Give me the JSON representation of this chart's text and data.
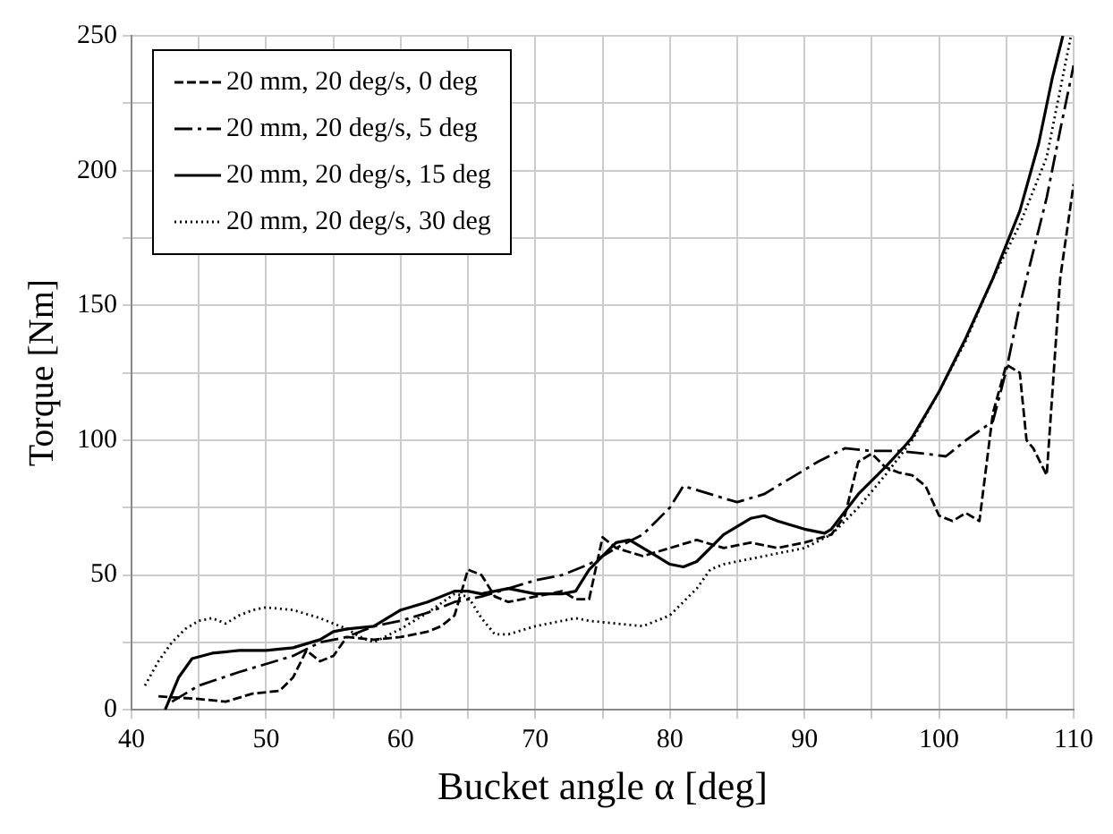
{
  "chart_data": {
    "type": "line",
    "xlabel": "Bucket angle α [deg]",
    "ylabel": "Torque [Nm]",
    "xlim": [
      40,
      110
    ],
    "ylim": [
      0,
      250
    ],
    "xticks": [
      40,
      {
        "value": 45,
        "label": null
      },
      50,
      {
        "value": 55,
        "label": null
      },
      60,
      {
        "value": 65,
        "label": null
      },
      70,
      {
        "value": 75,
        "label": null
      },
      80,
      {
        "value": 85,
        "label": null
      },
      90,
      {
        "value": 95,
        "label": null
      },
      100,
      {
        "value": 105,
        "label": null
      },
      110
    ],
    "yticks": [
      0,
      {
        "value": 25,
        "label": null
      },
      50,
      {
        "value": 75,
        "label": null
      },
      100,
      {
        "value": 125,
        "label": null
      },
      150,
      {
        "value": 175,
        "label": null
      },
      200,
      {
        "value": 225,
        "label": null
      },
      250
    ],
    "grid": true,
    "legend": "top left",
    "marker": "none",
    "series": [
      {
        "name": "20 mm, 20 deg/s, 0 deg",
        "color": "#000000",
        "line_style": "dashed",
        "x": [
          42,
          45,
          47,
          49,
          51,
          52,
          53,
          54,
          55,
          56,
          58,
          60,
          62,
          63,
          64,
          65,
          66,
          67,
          68,
          70,
          72,
          73,
          74,
          75,
          76,
          78,
          80,
          82,
          84,
          86,
          88,
          90,
          92,
          93,
          94,
          95,
          96,
          97,
          98,
          99,
          100,
          101,
          102,
          103,
          104,
          105,
          106,
          106.5,
          107,
          108,
          109,
          110
        ],
        "values": [
          5,
          4,
          3,
          6,
          7,
          12,
          22,
          18,
          20,
          27,
          26,
          27,
          29,
          31,
          35,
          52,
          50,
          42,
          40,
          42,
          44,
          41,
          41,
          64,
          60,
          57,
          60,
          63,
          60,
          62,
          60,
          62,
          65,
          72,
          92,
          95,
          90,
          88,
          87,
          83,
          72,
          70,
          73,
          70,
          110,
          128,
          125,
          100,
          97,
          87,
          160,
          195
        ]
      },
      {
        "name": "20 mm, 20 deg/s, 5 deg",
        "color": "#000000",
        "line_style": "dashdot",
        "x": [
          43,
          45,
          48,
          50,
          52,
          54,
          56,
          58,
          60,
          62,
          64,
          66,
          68,
          70,
          72,
          74,
          76,
          78,
          80,
          81,
          83,
          85,
          87,
          89,
          91,
          93,
          95,
          97,
          99,
          100.5,
          102,
          104,
          105,
          106,
          107,
          108,
          109,
          110
        ],
        "values": [
          3,
          9,
          14,
          17,
          20,
          25,
          27,
          31,
          33,
          36,
          40,
          42,
          45,
          48,
          50,
          54,
          60,
          65,
          75,
          83,
          80,
          77,
          80,
          86,
          92,
          97,
          96,
          96,
          95,
          94,
          100,
          107,
          126,
          150,
          170,
          190,
          215,
          239
        ]
      },
      {
        "name": "20 mm, 20 deg/s, 15 deg",
        "color": "#000000",
        "line_style": "solid",
        "x": [
          42.5,
          43.5,
          44.5,
          46,
          48,
          50,
          52,
          54,
          55,
          56,
          58,
          60,
          62,
          64,
          65,
          66,
          68,
          70,
          72,
          73,
          74,
          75,
          76,
          77,
          78,
          79,
          80,
          81,
          82,
          84,
          86,
          87,
          88,
          90,
          91.5,
          92,
          94,
          96,
          97.3,
          98,
          100,
          102,
          104,
          106,
          107.4,
          108.4,
          109.2
        ],
        "values": [
          0,
          12,
          19,
          21,
          22,
          22,
          23,
          26,
          29,
          30,
          31,
          37,
          40,
          44,
          44,
          43,
          45,
          43,
          43,
          44,
          52,
          57,
          62,
          63,
          60,
          57,
          54,
          53,
          55,
          65,
          71,
          72,
          70,
          67,
          65.5,
          67,
          80,
          90,
          97,
          101,
          118,
          138,
          160,
          185,
          210,
          234,
          250
        ]
      },
      {
        "name": "20 mm, 20 deg/s, 30 deg",
        "color": "#000000",
        "line_style": "dotted",
        "x": [
          41,
          42,
          43,
          44,
          45,
          46,
          47,
          48,
          49,
          50,
          52,
          54,
          56,
          57,
          58,
          60,
          62,
          64,
          65,
          66,
          67,
          68,
          70,
          72,
          73,
          74,
          76,
          78,
          80,
          82,
          83,
          84,
          86,
          88,
          90,
          92,
          94,
          96,
          98,
          100,
          102,
          104,
          106,
          108,
          109,
          109.8
        ],
        "values": [
          9,
          18,
          25,
          30,
          33,
          34,
          32,
          35,
          37,
          38,
          37,
          34,
          30,
          27,
          25,
          30,
          36,
          43,
          42,
          34,
          28,
          28,
          31,
          33,
          34,
          33,
          32,
          31,
          35,
          45,
          52,
          54,
          56,
          58,
          60,
          65,
          75,
          87,
          100,
          118,
          137,
          160,
          180,
          205,
          230,
          250
        ]
      }
    ]
  }
}
